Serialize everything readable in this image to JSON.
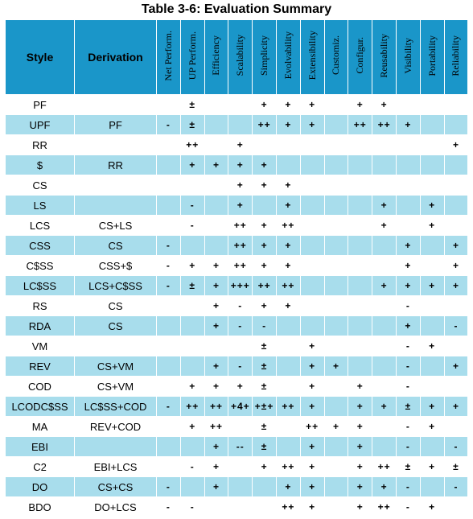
{
  "title": "Table 3-6: Evaluation Summary",
  "headers": {
    "style": "Style",
    "derivation": "Derivation",
    "properties": [
      "Net Perform.",
      "UP Perform.",
      "Efficiency",
      "Scalability",
      "Simplicity",
      "Evolvability",
      "Extensibility",
      "Customiz.",
      "Configur.",
      "Reusability",
      "Visibility",
      "Portability",
      "Reliability"
    ]
  },
  "rows": [
    {
      "style": "PF",
      "derivation": "",
      "values": [
        "",
        "±",
        "",
        "",
        "+",
        "+",
        "+",
        "",
        "+",
        "+",
        "",
        "",
        ""
      ]
    },
    {
      "style": "UPF",
      "derivation": "PF",
      "values": [
        "-",
        "±",
        "",
        "",
        "++",
        "+",
        "+",
        "",
        "++",
        "++",
        "+",
        "",
        ""
      ]
    },
    {
      "style": "RR",
      "derivation": "",
      "values": [
        "",
        "++",
        "",
        "+",
        "",
        "",
        "",
        "",
        "",
        "",
        "",
        "",
        "+"
      ]
    },
    {
      "style": "$",
      "derivation": "RR",
      "values": [
        "",
        "+",
        "+",
        "+",
        "+",
        "",
        "",
        "",
        "",
        "",
        "",
        "",
        ""
      ]
    },
    {
      "style": "CS",
      "derivation": "",
      "values": [
        "",
        "",
        "",
        "+",
        "+",
        "+",
        "",
        "",
        "",
        "",
        "",
        "",
        ""
      ]
    },
    {
      "style": "LS",
      "derivation": "",
      "values": [
        "",
        "-",
        "",
        "+",
        "",
        "+",
        "",
        "",
        "",
        "+",
        "",
        "+",
        ""
      ]
    },
    {
      "style": "LCS",
      "derivation": "CS+LS",
      "values": [
        "",
        "-",
        "",
        "++",
        "+",
        "++",
        "",
        "",
        "",
        "+",
        "",
        "+",
        ""
      ]
    },
    {
      "style": "CSS",
      "derivation": "CS",
      "values": [
        "-",
        "",
        "",
        "++",
        "+",
        "+",
        "",
        "",
        "",
        "",
        "+",
        "",
        "+"
      ]
    },
    {
      "style": "C$SS",
      "derivation": "CSS+$",
      "values": [
        "-",
        "+",
        "+",
        "++",
        "+",
        "+",
        "",
        "",
        "",
        "",
        "+",
        "",
        "+"
      ]
    },
    {
      "style": "LC$SS",
      "derivation": "LCS+C$SS",
      "values": [
        "-",
        "±",
        "+",
        "+++",
        "++",
        "++",
        "",
        "",
        "",
        "+",
        "+",
        "+",
        "+"
      ]
    },
    {
      "style": "RS",
      "derivation": "CS",
      "values": [
        "",
        "",
        "+",
        "-",
        "+",
        "+",
        "",
        "",
        "",
        "",
        "-",
        "",
        ""
      ]
    },
    {
      "style": "RDA",
      "derivation": "CS",
      "values": [
        "",
        "",
        "+",
        "-",
        "-",
        "",
        "",
        "",
        "",
        "",
        "+",
        "",
        "-"
      ]
    },
    {
      "style": "VM",
      "derivation": "",
      "values": [
        "",
        "",
        "",
        "",
        "±",
        "",
        "+",
        "",
        "",
        "",
        "-",
        "+",
        ""
      ]
    },
    {
      "style": "REV",
      "derivation": "CS+VM",
      "values": [
        "",
        "",
        "+",
        "-",
        "±",
        "",
        "+",
        "+",
        "",
        "",
        "-",
        "",
        "+"
      ]
    },
    {
      "style": "COD",
      "derivation": "CS+VM",
      "values": [
        "",
        "+",
        "+",
        "+",
        "±",
        "",
        "+",
        "",
        "+",
        "",
        "-",
        "",
        ""
      ]
    },
    {
      "style": "LCODC$SS",
      "derivation": "LC$SS+COD",
      "values": [
        "-",
        "++",
        "++",
        "+4+",
        "+±+",
        "++",
        "+",
        "",
        "+",
        "+",
        "±",
        "+",
        "+"
      ]
    },
    {
      "style": "MA",
      "derivation": "REV+COD",
      "values": [
        "",
        "+",
        "++",
        "",
        "±",
        "",
        "++",
        "+",
        "+",
        "",
        "-",
        "+",
        ""
      ]
    },
    {
      "style": "EBI",
      "derivation": "",
      "values": [
        "",
        "",
        "+",
        "--",
        "±",
        "",
        "+",
        "",
        "+",
        "",
        "-",
        "",
        "-"
      ]
    },
    {
      "style": "C2",
      "derivation": "EBI+LCS",
      "values": [
        "",
        "-",
        "+",
        "",
        "+",
        "++",
        "+",
        "",
        "+",
        "++",
        "±",
        "+",
        "±"
      ]
    },
    {
      "style": "DO",
      "derivation": "CS+CS",
      "values": [
        "-",
        "",
        "+",
        "",
        "",
        "+",
        "+",
        "",
        "+",
        "+",
        "-",
        "",
        "-"
      ]
    },
    {
      "style": "BDO",
      "derivation": "DO+LCS",
      "values": [
        "-",
        "-",
        "",
        "",
        "",
        "++",
        "+",
        "",
        "+",
        "++",
        "-",
        "+",
        ""
      ]
    }
  ],
  "colors": {
    "header": "#1a96c9",
    "alt_row": "#a8ddec",
    "row": "#ffffff"
  }
}
